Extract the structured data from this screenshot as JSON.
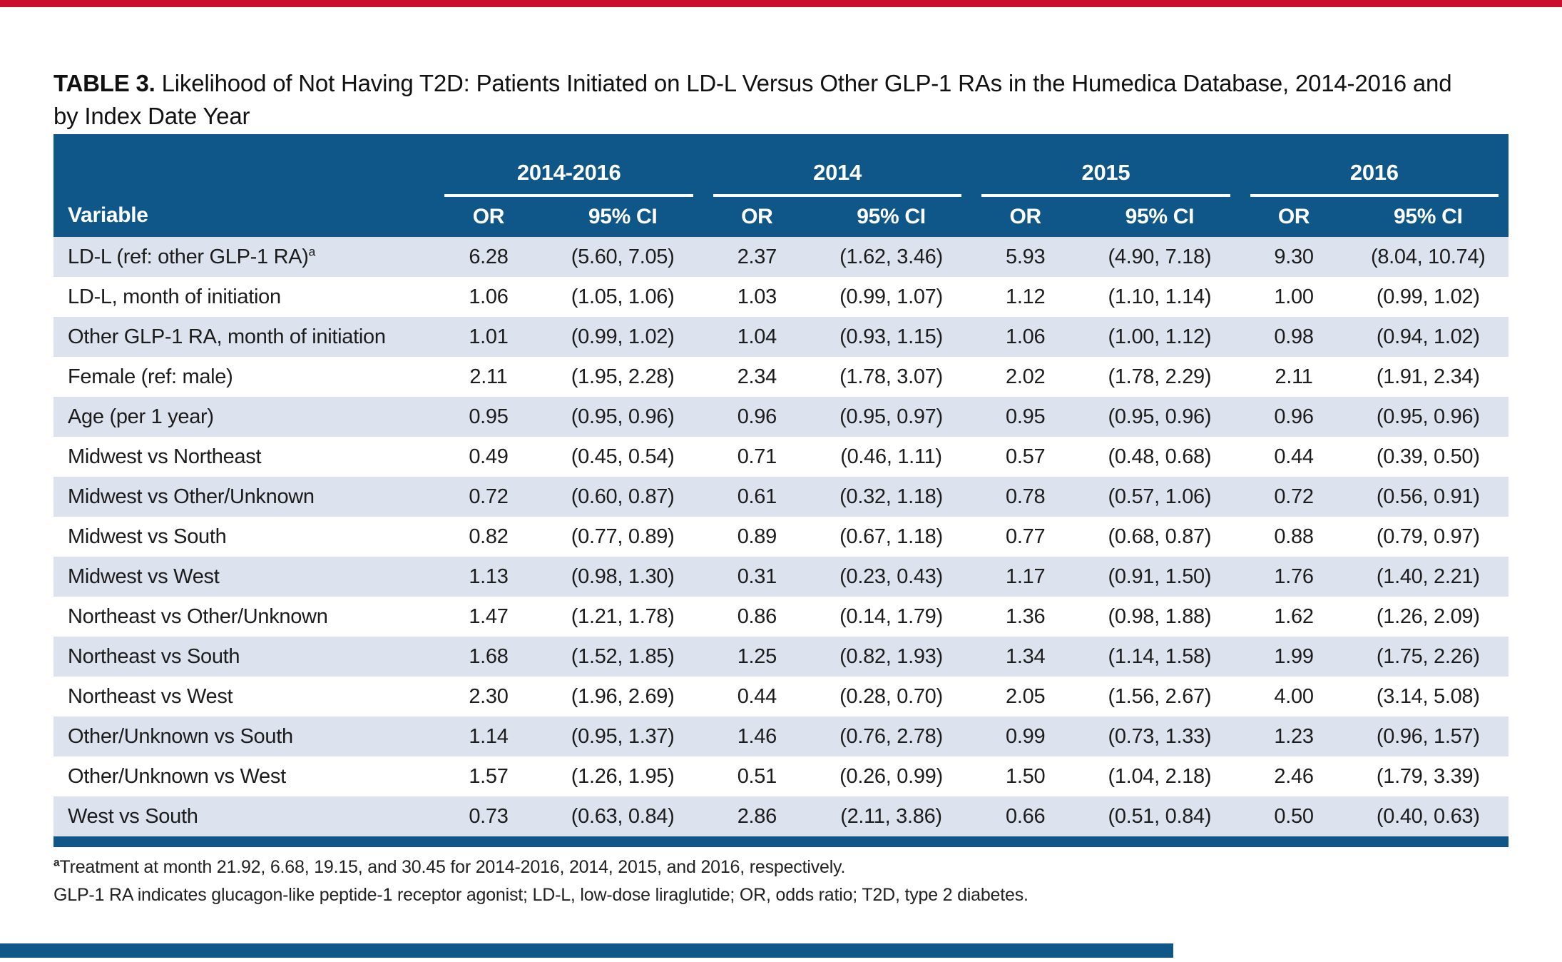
{
  "title": {
    "prefix": "TABLE 3.",
    "line1": "Likelihood of Not Having T2D: Patients Initiated on LD-L Versus Other GLP-1 RAs in the Humedica Database, 2014-2016 and",
    "line2": "by Index Date Year"
  },
  "table": {
    "variable_header": "Variable",
    "groups": [
      {
        "label": "2014-2016",
        "or": "OR",
        "ci": "95% CI"
      },
      {
        "label": "2014",
        "or": "OR",
        "ci": "95% CI"
      },
      {
        "label": "2015",
        "or": "OR",
        "ci": "95% CI"
      },
      {
        "label": "2016",
        "or": "OR",
        "ci": "95% CI"
      }
    ],
    "rows": [
      {
        "variable": "LD-L (ref: other GLP-1 RA)",
        "variable_sup": "a",
        "cells": [
          "6.28",
          "(5.60, 7.05)",
          "2.37",
          "(1.62, 3.46)",
          "5.93",
          "(4.90, 7.18)",
          "9.30",
          "(8.04, 10.74)"
        ]
      },
      {
        "variable": "LD-L, month of initiation",
        "cells": [
          "1.06",
          "(1.05, 1.06)",
          "1.03",
          "(0.99, 1.07)",
          "1.12",
          "(1.10, 1.14)",
          "1.00",
          "(0.99, 1.02)"
        ]
      },
      {
        "variable": "Other GLP-1 RA, month of initiation",
        "cells": [
          "1.01",
          "(0.99, 1.02)",
          "1.04",
          "(0.93, 1.15)",
          "1.06",
          "(1.00, 1.12)",
          "0.98",
          "(0.94, 1.02)"
        ]
      },
      {
        "variable": "Female (ref: male)",
        "cells": [
          "2.11",
          "(1.95, 2.28)",
          "2.34",
          "(1.78, 3.07)",
          "2.02",
          "(1.78, 2.29)",
          "2.11",
          "(1.91, 2.34)"
        ]
      },
      {
        "variable": "Age (per 1 year)",
        "cells": [
          "0.95",
          "(0.95, 0.96)",
          "0.96",
          "(0.95, 0.97)",
          "0.95",
          "(0.95, 0.96)",
          "0.96",
          "(0.95, 0.96)"
        ]
      },
      {
        "variable": "Midwest vs Northeast",
        "cells": [
          "0.49",
          "(0.45, 0.54)",
          "0.71",
          "(0.46, 1.11)",
          "0.57",
          "(0.48, 0.68)",
          "0.44",
          "(0.39, 0.50)"
        ]
      },
      {
        "variable": "Midwest vs Other/Unknown",
        "cells": [
          "0.72",
          "(0.60, 0.87)",
          "0.61",
          "(0.32, 1.18)",
          "0.78",
          "(0.57, 1.06)",
          "0.72",
          "(0.56, 0.91)"
        ]
      },
      {
        "variable": "Midwest vs South",
        "cells": [
          "0.82",
          "(0.77, 0.89)",
          "0.89",
          "(0.67, 1.18)",
          "0.77",
          "(0.68, 0.87)",
          "0.88",
          "(0.79, 0.97)"
        ]
      },
      {
        "variable": "Midwest vs West",
        "cells": [
          "1.13",
          "(0.98, 1.30)",
          "0.31",
          "(0.23, 0.43)",
          "1.17",
          "(0.91, 1.50)",
          "1.76",
          "(1.40, 2.21)"
        ]
      },
      {
        "variable": "Northeast vs Other/Unknown",
        "cells": [
          "1.47",
          "(1.21, 1.78)",
          "0.86",
          "(0.14, 1.79)",
          "1.36",
          "(0.98, 1.88)",
          "1.62",
          "(1.26, 2.09)"
        ]
      },
      {
        "variable": "Northeast vs South",
        "cells": [
          "1.68",
          "(1.52, 1.85)",
          "1.25",
          "(0.82, 1.93)",
          "1.34",
          "(1.14, 1.58)",
          "1.99",
          "(1.75, 2.26)"
        ]
      },
      {
        "variable": "Northeast vs West",
        "cells": [
          "2.30",
          "(1.96, 2.69)",
          "0.44",
          "(0.28, 0.70)",
          "2.05",
          "(1.56, 2.67)",
          "4.00",
          "(3.14, 5.08)"
        ]
      },
      {
        "variable": "Other/Unknown vs South",
        "cells": [
          "1.14",
          "(0.95, 1.37)",
          "1.46",
          "(0.76, 2.78)",
          "0.99",
          "(0.73, 1.33)",
          "1.23",
          "(0.96, 1.57)"
        ]
      },
      {
        "variable": "Other/Unknown vs West",
        "cells": [
          "1.57",
          "(1.26, 1.95)",
          "0.51",
          "(0.26, 0.99)",
          "1.50",
          "(1.04, 2.18)",
          "2.46",
          "(1.79, 3.39)"
        ]
      },
      {
        "variable": "West vs South",
        "cells": [
          "0.73",
          "(0.63, 0.84)",
          "2.86",
          "(2.11, 3.86)",
          "0.66",
          "(0.51, 0.84)",
          "0.50",
          "(0.40, 0.63)"
        ]
      }
    ]
  },
  "footnotes": {
    "fn1_sup": "a",
    "fn1": "Treatment at month 21.92, 6.68, 19.15, and 30.45 for 2014-2016, 2014, 2015, and 2016, respectively.",
    "fn2": "GLP-1 RA indicates glucagon-like peptide-1 receptor agonist; LD-L, low-dose liraglutide; OR, odds ratio; T2D, type 2 diabetes."
  },
  "colors": {
    "header_blue": "#0e5788",
    "row_stripe_light": "#dce2ee",
    "accent_red": "#c8102e",
    "header_text": "#ffffff",
    "body_text": "#1c1c1c"
  }
}
